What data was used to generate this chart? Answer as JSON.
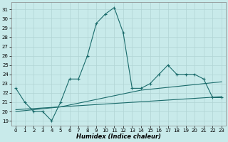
{
  "xlabel": "Humidex (Indice chaleur)",
  "bg_color": "#c8eaea",
  "grid_color": "#b0d4d4",
  "line_color": "#1a6b6b",
  "xlim": [
    -0.5,
    23.5
  ],
  "ylim": [
    18.5,
    31.8
  ],
  "yticks": [
    19,
    20,
    21,
    22,
    23,
    24,
    25,
    26,
    27,
    28,
    29,
    30,
    31
  ],
  "xticks": [
    0,
    1,
    2,
    3,
    4,
    5,
    6,
    7,
    8,
    9,
    10,
    11,
    12,
    13,
    14,
    15,
    16,
    17,
    18,
    19,
    20,
    21,
    22,
    23
  ],
  "line1_x": [
    0,
    1,
    2,
    3,
    4,
    5,
    6,
    7,
    8,
    9,
    10,
    11,
    12,
    13,
    14,
    15,
    16,
    17,
    18,
    19,
    20,
    21,
    22,
    23
  ],
  "line1_y": [
    22.5,
    21.0,
    20.0,
    20.0,
    19.0,
    21.0,
    23.5,
    23.5,
    26.0,
    29.5,
    30.5,
    31.2,
    28.5,
    22.5,
    22.5,
    23.0,
    24.0,
    25.0,
    24.0,
    24.0,
    24.0,
    23.5,
    21.5,
    21.5
  ],
  "line2_x": [
    0,
    1,
    2,
    3,
    4,
    5,
    6,
    7,
    8,
    9,
    10,
    11,
    12,
    13,
    14,
    15,
    16,
    17,
    18,
    19,
    20,
    21,
    22,
    23
  ],
  "line2_y": [
    20.0,
    20.1,
    20.2,
    20.3,
    20.4,
    20.5,
    20.7,
    20.9,
    21.1,
    21.3,
    21.5,
    21.7,
    21.9,
    22.1,
    22.3,
    22.4,
    22.5,
    22.6,
    22.7,
    22.8,
    22.9,
    23.0,
    23.1,
    23.2
  ],
  "line3_x": [
    0,
    23
  ],
  "line3_y": [
    20.2,
    21.6
  ],
  "marker": "+",
  "markersize": 3,
  "linewidth": 0.8,
  "tick_fontsize": 5.0,
  "xlabel_fontsize": 6.0
}
